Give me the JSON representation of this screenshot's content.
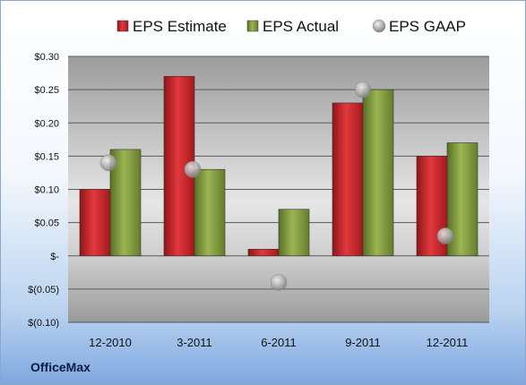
{
  "brand": "OfficeMax",
  "chart_data": {
    "type": "bar",
    "categories": [
      "12-2010",
      "3-2011",
      "6-2011",
      "9-2011",
      "12-2011"
    ],
    "series": [
      {
        "name": "EPS Estimate",
        "kind": "bar",
        "color": "#cc2226",
        "values": [
          0.1,
          0.27,
          0.01,
          0.23,
          0.15
        ]
      },
      {
        "name": "EPS Actual",
        "kind": "bar",
        "color": "#7f9a3a",
        "values": [
          0.16,
          0.13,
          0.07,
          0.25,
          0.17
        ]
      },
      {
        "name": "EPS GAAP",
        "kind": "marker",
        "color": "#b9b9b9",
        "values": [
          0.14,
          0.13,
          -0.04,
          0.25,
          0.03
        ]
      }
    ],
    "yticks": [
      "$0.30",
      "$0.25",
      "$0.20",
      "$0.15",
      "$0.10",
      "$0.05",
      "$-",
      "$(0.05)",
      "$(0.10)"
    ],
    "ylim": [
      -0.1,
      0.3
    ],
    "ystep": 0.05,
    "grid": true,
    "legend_position": "top"
  }
}
